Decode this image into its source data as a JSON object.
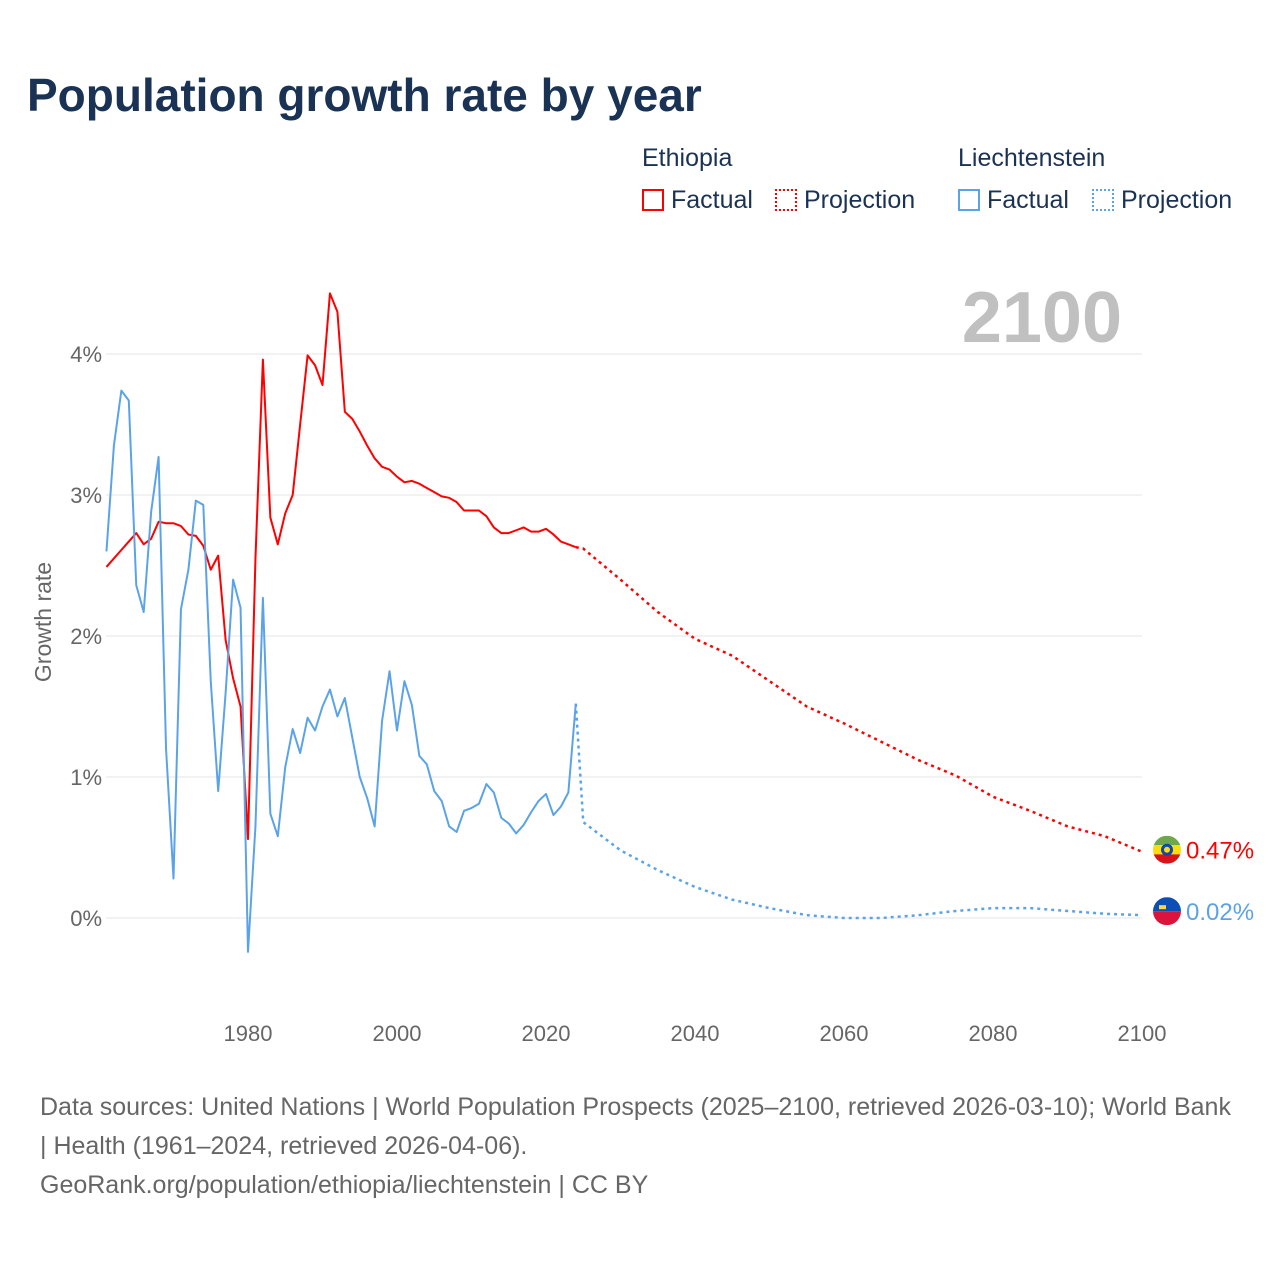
{
  "chart_data": {
    "type": "line",
    "title": "Population growth rate by year",
    "ylabel": "Growth rate",
    "xlim": [
      1961,
      2100
    ],
    "ylim": [
      -0.6,
      4.6
    ],
    "x_ticks": [
      1980,
      2000,
      2020,
      2040,
      2060,
      2080,
      2100
    ],
    "y_ticks": [
      {
        "v": 0,
        "label": "0%"
      },
      {
        "v": 1,
        "label": "1%"
      },
      {
        "v": 2,
        "label": "2%"
      },
      {
        "v": 3,
        "label": "3%"
      },
      {
        "v": 4,
        "label": "4%"
      }
    ],
    "year_watermark": "2100",
    "legend": {
      "placement": "top-right",
      "factual": "Factual",
      "projection": "Projection"
    },
    "series": [
      {
        "name": "Ethiopia",
        "color": "#ff0000",
        "end_label": "0.47%",
        "factual_start": 1961,
        "factual": [
          2.49,
          2.55,
          2.61,
          2.67,
          2.73,
          2.65,
          2.69,
          2.81,
          2.8,
          2.8,
          2.78,
          2.72,
          2.71,
          2.64,
          2.47,
          2.57,
          1.97,
          1.7,
          1.5,
          0.56,
          2.55,
          3.96,
          2.84,
          2.65,
          2.87,
          3.0,
          3.5,
          3.99,
          3.92,
          3.78,
          4.43,
          4.3,
          3.59,
          3.54,
          3.45,
          3.35,
          3.26,
          3.2,
          3.18,
          3.13,
          3.09,
          3.1,
          3.08,
          3.05,
          3.02,
          2.99,
          2.98,
          2.95,
          2.89,
          2.89,
          2.89,
          2.85,
          2.77,
          2.73,
          2.73,
          2.75,
          2.77,
          2.74,
          2.74,
          2.76,
          2.72,
          2.67,
          2.65,
          2.63
        ],
        "projection": [
          [
            2024,
            2.63
          ],
          [
            2025,
            2.62
          ],
          [
            2030,
            2.4
          ],
          [
            2035,
            2.17
          ],
          [
            2040,
            1.98
          ],
          [
            2045,
            1.86
          ],
          [
            2050,
            1.68
          ],
          [
            2055,
            1.5
          ],
          [
            2060,
            1.38
          ],
          [
            2065,
            1.25
          ],
          [
            2070,
            1.12
          ],
          [
            2075,
            1.01
          ],
          [
            2080,
            0.86
          ],
          [
            2085,
            0.76
          ],
          [
            2090,
            0.65
          ],
          [
            2095,
            0.58
          ],
          [
            2100,
            0.47
          ]
        ]
      },
      {
        "name": "Liechtenstein",
        "color": "#5ba3e8",
        "end_label": "0.02%",
        "factual_start": 1961,
        "factual": [
          2.6,
          3.35,
          3.74,
          3.67,
          2.36,
          2.17,
          2.88,
          3.27,
          1.2,
          0.28,
          2.19,
          2.47,
          2.96,
          2.93,
          1.68,
          0.9,
          1.6,
          2.4,
          2.2,
          -0.24,
          0.65,
          2.27,
          0.74,
          0.58,
          1.07,
          1.34,
          1.17,
          1.42,
          1.33,
          1.5,
          1.62,
          1.43,
          1.56,
          1.28,
          1.0,
          0.85,
          0.65,
          1.4,
          1.75,
          1.33,
          1.68,
          1.51,
          1.15,
          1.09,
          0.9,
          0.83,
          0.65,
          0.61,
          0.76,
          0.78,
          0.81,
          0.95,
          0.89,
          0.71,
          0.67,
          0.6,
          0.66,
          0.75,
          0.83,
          0.88,
          0.73,
          0.79,
          0.89,
          1.52
        ],
        "projection": [
          [
            2024,
            1.52
          ],
          [
            2025,
            0.68
          ],
          [
            2030,
            0.48
          ],
          [
            2035,
            0.34
          ],
          [
            2040,
            0.22
          ],
          [
            2045,
            0.13
          ],
          [
            2050,
            0.07
          ],
          [
            2055,
            0.02
          ],
          [
            2060,
            0.0
          ],
          [
            2065,
            0.0
          ],
          [
            2070,
            0.02
          ],
          [
            2075,
            0.05
          ],
          [
            2080,
            0.07
          ],
          [
            2085,
            0.07
          ],
          [
            2090,
            0.05
          ],
          [
            2095,
            0.03
          ],
          [
            2100,
            0.02
          ]
        ]
      }
    ]
  },
  "sources": "Data sources: United Nations | World Population Prospects (2025–2100, retrieved 2026-03-10); World Bank | Health (1961–2024, retrieved 2026-04-06).",
  "link": "GeoRank.org/population/ethiopia/liechtenstein | CC BY"
}
